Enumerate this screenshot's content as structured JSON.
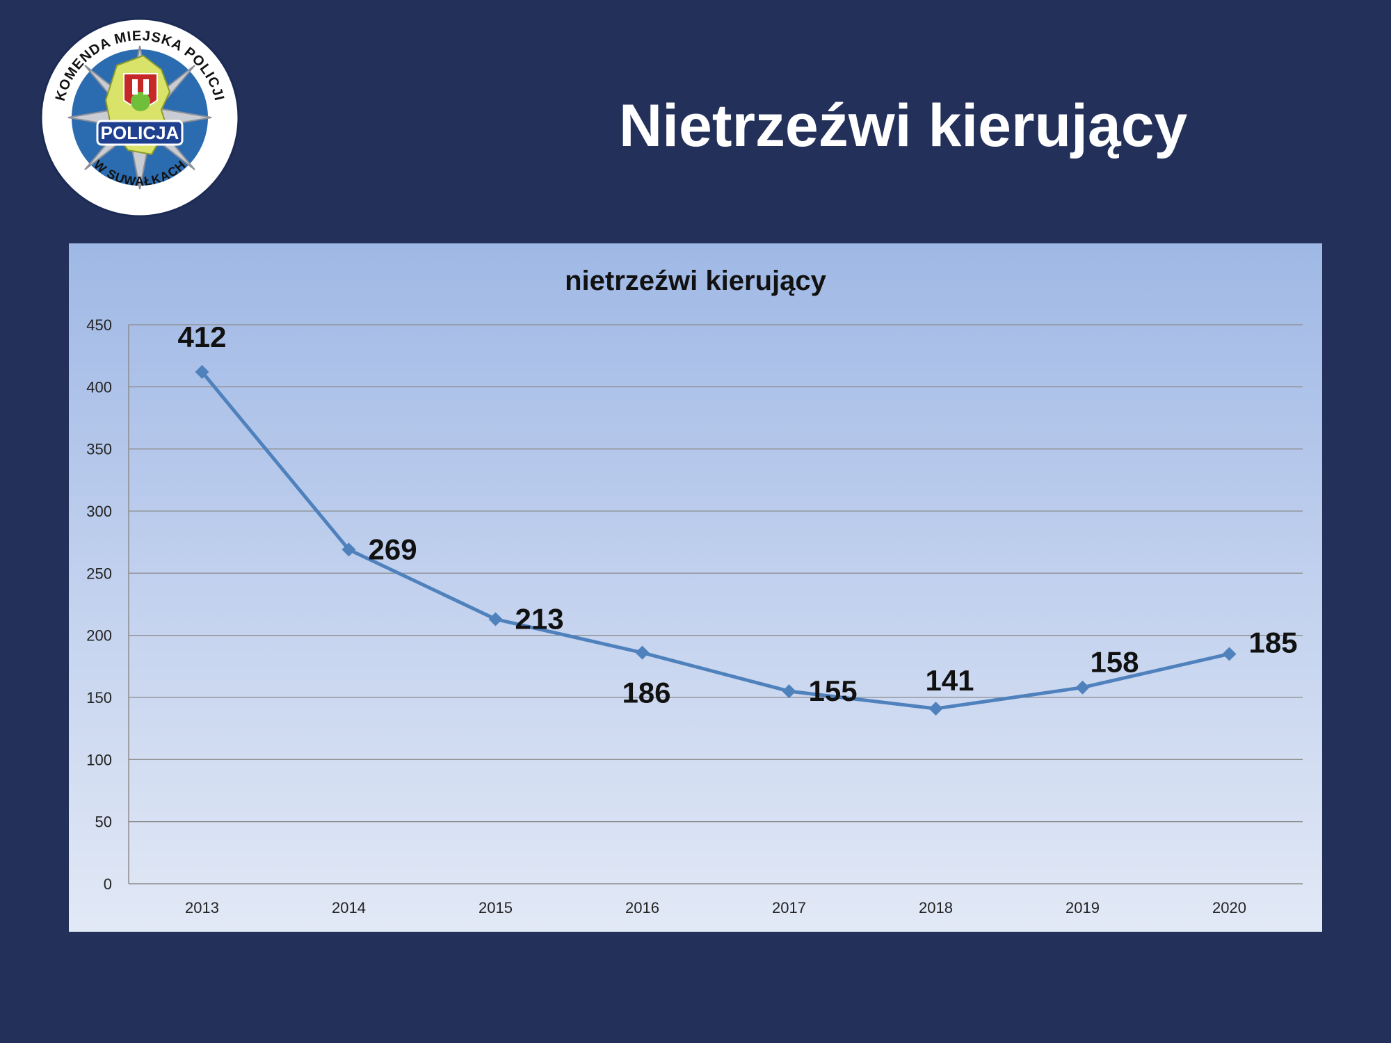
{
  "slide": {
    "title": "Nietrzeźwi kierujący",
    "background_color": "#22305a"
  },
  "logo": {
    "top_text": "KOMENDA MIEJSKA POLICJI",
    "badge_text": "POLICJA",
    "bottom_text": "W SUWAŁKACH"
  },
  "chart_data": {
    "type": "line",
    "title": "nietrzeźwi kierujący",
    "categories": [
      "2013",
      "2014",
      "2015",
      "2016",
      "2017",
      "2018",
      "2019",
      "2020"
    ],
    "values": [
      412,
      269,
      213,
      186,
      155,
      141,
      158,
      185
    ],
    "ylim": [
      0,
      450
    ],
    "yticks": [
      0,
      50,
      100,
      150,
      200,
      250,
      300,
      350,
      400,
      450
    ],
    "grid": true,
    "data_labels": true,
    "line_color": "#4f81bd",
    "marker": "diamond"
  }
}
